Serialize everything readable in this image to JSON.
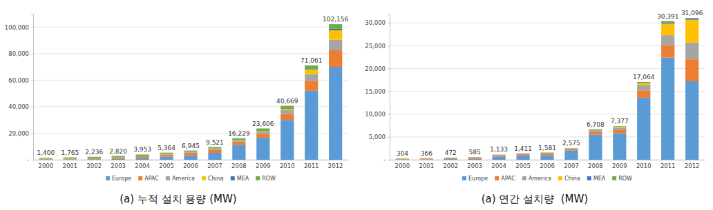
{
  "chart_data": [
    {
      "type": "bar",
      "stacked": true,
      "grid": true,
      "legend": "bottom",
      "title": "(a) 누적 설치 용량 (MW)",
      "categories": [
        "2000",
        "2001",
        "2002",
        "2003",
        "2004",
        "2005",
        "2006",
        "2007",
        "2008",
        "2009",
        "2010",
        "2011",
        "2012"
      ],
      "series": [
        {
          "name": "Europe",
          "color": "#5b9bd5",
          "values": [
            190,
            260,
            400,
            600,
            1300,
            2300,
            3300,
            5200,
            11000,
            16500,
            30000,
            52000,
            70043
          ]
        },
        {
          "name": "APAC",
          "color": "#ed7d31",
          "values": [
            400,
            500,
            700,
            950,
            1300,
            1600,
            2000,
            2400,
            2600,
            3000,
            4500,
            7500,
            12500
          ]
        },
        {
          "name": "America",
          "color": "#a5a5a5",
          "values": [
            190,
            230,
            280,
            340,
            400,
            480,
            600,
            800,
            1200,
            1700,
            2800,
            5000,
            8000
          ]
        },
        {
          "name": "China",
          "color": "#ffc000",
          "values": [
            30,
            35,
            45,
            50,
            60,
            70,
            80,
            100,
            150,
            300,
            900,
            3300,
            7000
          ]
        },
        {
          "name": "MEA",
          "color": "#4472c4",
          "values": [
            10,
            10,
            10,
            15,
            20,
            25,
            30,
            40,
            60,
            100,
            200,
            500,
            1100
          ]
        },
        {
          "name": "ROW",
          "color": "#70ad47",
          "values": [
            580,
            730,
            801,
            865,
            873,
            889,
            935,
            981,
            1219,
            2006,
            2269,
            2761,
            3513
          ]
        }
      ],
      "totals": [
        1400,
        1765,
        2236,
        2820,
        3953,
        5364,
        6945,
        9521,
        16229,
        23606,
        40669,
        71061,
        102156
      ],
      "total_labels": [
        "1,400",
        "1,765",
        "2,236",
        "2,820",
        "3,953",
        "5,364",
        "6,945",
        "9,521",
        "16,229",
        "23,606",
        "40,669",
        "71,061",
        "102,156"
      ],
      "ylim": [
        0,
        110000
      ],
      "yticks": [
        {
          "value": 0,
          "label": "-"
        },
        {
          "value": 20000,
          "label": "20,000"
        },
        {
          "value": 40000,
          "label": "40,000"
        },
        {
          "value": 60000,
          "label": "60,000"
        },
        {
          "value": 80000,
          "label": "80,000"
        },
        {
          "value": 100000,
          "label": "100,000"
        }
      ]
    },
    {
      "type": "bar",
      "stacked": true,
      "grid": true,
      "legend": "bottom",
      "title": "(a) 연간 설치량  (MW)",
      "categories": [
        "2000",
        "2001",
        "2002",
        "2003",
        "2004",
        "2005",
        "2006",
        "2007",
        "2008",
        "2009",
        "2010",
        "2011",
        "2012"
      ],
      "series": [
        {
          "name": "Europe",
          "color": "#5b9bd5",
          "values": [
            50,
            70,
            140,
            200,
            700,
            980,
            1000,
            2000,
            5500,
            5800,
            13600,
            22400,
            17200
          ]
        },
        {
          "name": "APAC",
          "color": "#ed7d31",
          "values": [
            150,
            170,
            200,
            250,
            300,
            300,
            350,
            300,
            650,
            700,
            1600,
            2700,
            4800
          ]
        },
        {
          "name": "America",
          "color": "#a5a5a5",
          "values": [
            50,
            60,
            70,
            80,
            100,
            100,
            150,
            200,
            350,
            500,
            1100,
            2200,
            3700
          ]
        },
        {
          "name": "China",
          "color": "#ffc000",
          "values": [
            4,
            5,
            10,
            10,
            10,
            10,
            15,
            20,
            45,
            160,
            500,
            2500,
            5000
          ]
        },
        {
          "name": "MEA",
          "color": "#4472c4",
          "values": [
            1,
            1,
            2,
            5,
            5,
            5,
            5,
            10,
            30,
            50,
            100,
            200,
            300
          ]
        },
        {
          "name": "ROW",
          "color": "#70ad47",
          "values": [
            49,
            60,
            50,
            40,
            18,
            16,
            61,
            45,
            133,
            167,
            164,
            391,
            96
          ]
        }
      ],
      "totals": [
        304,
        366,
        472,
        585,
        1133,
        1411,
        1581,
        2575,
        6708,
        7377,
        17064,
        30391,
        31096
      ],
      "total_labels": [
        "304",
        "366",
        "472",
        "585",
        "1,133",
        "1,411",
        "1,581",
        "2,575",
        "6,708",
        "7,377",
        "17,064",
        "30,391",
        "31,096"
      ],
      "ylim": [
        0,
        32000
      ],
      "yticks": [
        {
          "value": 0,
          "label": "-"
        },
        {
          "value": 5000,
          "label": "5,000"
        },
        {
          "value": 10000,
          "label": "10,000"
        },
        {
          "value": 15000,
          "label": "15,000"
        },
        {
          "value": 20000,
          "label": "20,000"
        },
        {
          "value": 25000,
          "label": "25,000"
        },
        {
          "value": 30000,
          "label": "30,000"
        }
      ]
    }
  ]
}
